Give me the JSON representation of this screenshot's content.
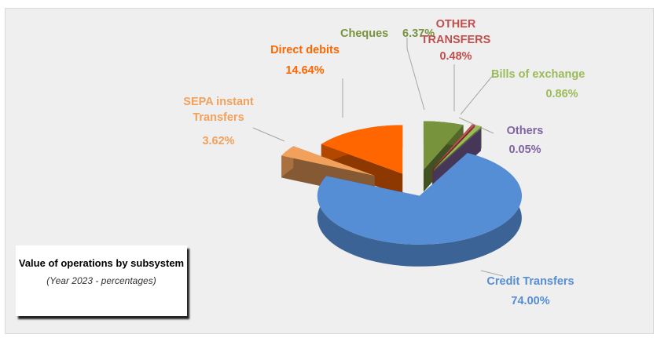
{
  "chart_data": {
    "type": "pie",
    "title": "Value of operations by subsystem",
    "subtitle": "(Year 2023  - percentages)",
    "categories": [
      "Cheques",
      "OTHER TRANSFERS",
      "Bills  of exchange",
      "Others",
      "Credit  Transfers",
      "SEPA instant Transfers",
      "Direct debits"
    ],
    "values": [
      6.37,
      0.48,
      0.86,
      0.05,
      74.0,
      3.62,
      14.64
    ],
    "value_labels": [
      "6.37%",
      "0.48%",
      "0.86%",
      "0.05%",
      "74.00%",
      "3.62%",
      "14.64%"
    ],
    "colors": [
      "#77933c",
      "#c0504d",
      "#9bbb59",
      "#8064a2",
      "#558ed5",
      "#f2a15c",
      "#ff6600"
    ]
  }
}
